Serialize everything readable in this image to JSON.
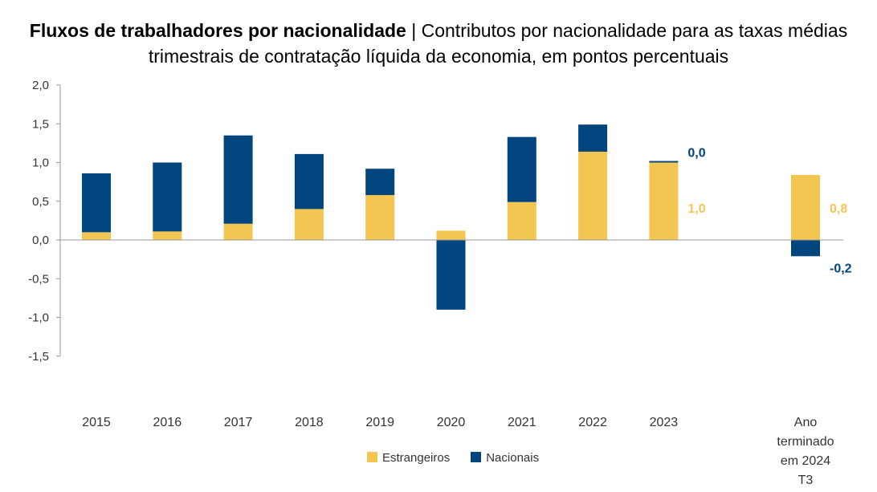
{
  "chart_data": {
    "type": "bar",
    "stacked": true,
    "title": "Fluxos de trabalhadores por nacionalidade",
    "subtitle": "Contributos por nacionalidade para as taxas médias trimestrais de contratação líquida da economia, em pontos percentuais",
    "title_separator": "|",
    "categories": [
      "2015",
      "2016",
      "2017",
      "2018",
      "2019",
      "2020",
      "2021",
      "2022",
      "2023",
      "",
      "Ano terminado em 2024 T3"
    ],
    "series": [
      {
        "name": "Estrangeiros",
        "color": "#F2C651",
        "values": [
          0.1,
          0.11,
          0.21,
          0.4,
          0.58,
          0.12,
          0.49,
          1.14,
          1.0,
          null,
          0.84
        ]
      },
      {
        "name": "Nacionais",
        "color": "#00457E",
        "values": [
          0.76,
          0.89,
          1.14,
          0.71,
          0.34,
          -0.9,
          0.84,
          0.35,
          0.02,
          null,
          -0.21
        ]
      }
    ],
    "data_labels": [
      {
        "category_index": 8,
        "series": "Nacionais",
        "text": "0,0"
      },
      {
        "category_index": 8,
        "series": "Estrangeiros",
        "text": "1,0"
      },
      {
        "category_index": 10,
        "series": "Estrangeiros",
        "text": "0,8"
      },
      {
        "category_index": 10,
        "series": "Nacionais",
        "text": "-0,2"
      }
    ],
    "ylim": [
      -1.5,
      2.0
    ],
    "yticks": [
      "2,0",
      "1,5",
      "1,0",
      "0,5",
      "0,0",
      "-0,5",
      "-1,0",
      "-1,5"
    ],
    "ytick_values": [
      2.0,
      1.5,
      1.0,
      0.5,
      0.0,
      -0.5,
      -1.0,
      -1.5
    ],
    "grid": false,
    "legend_position": "bottom"
  }
}
